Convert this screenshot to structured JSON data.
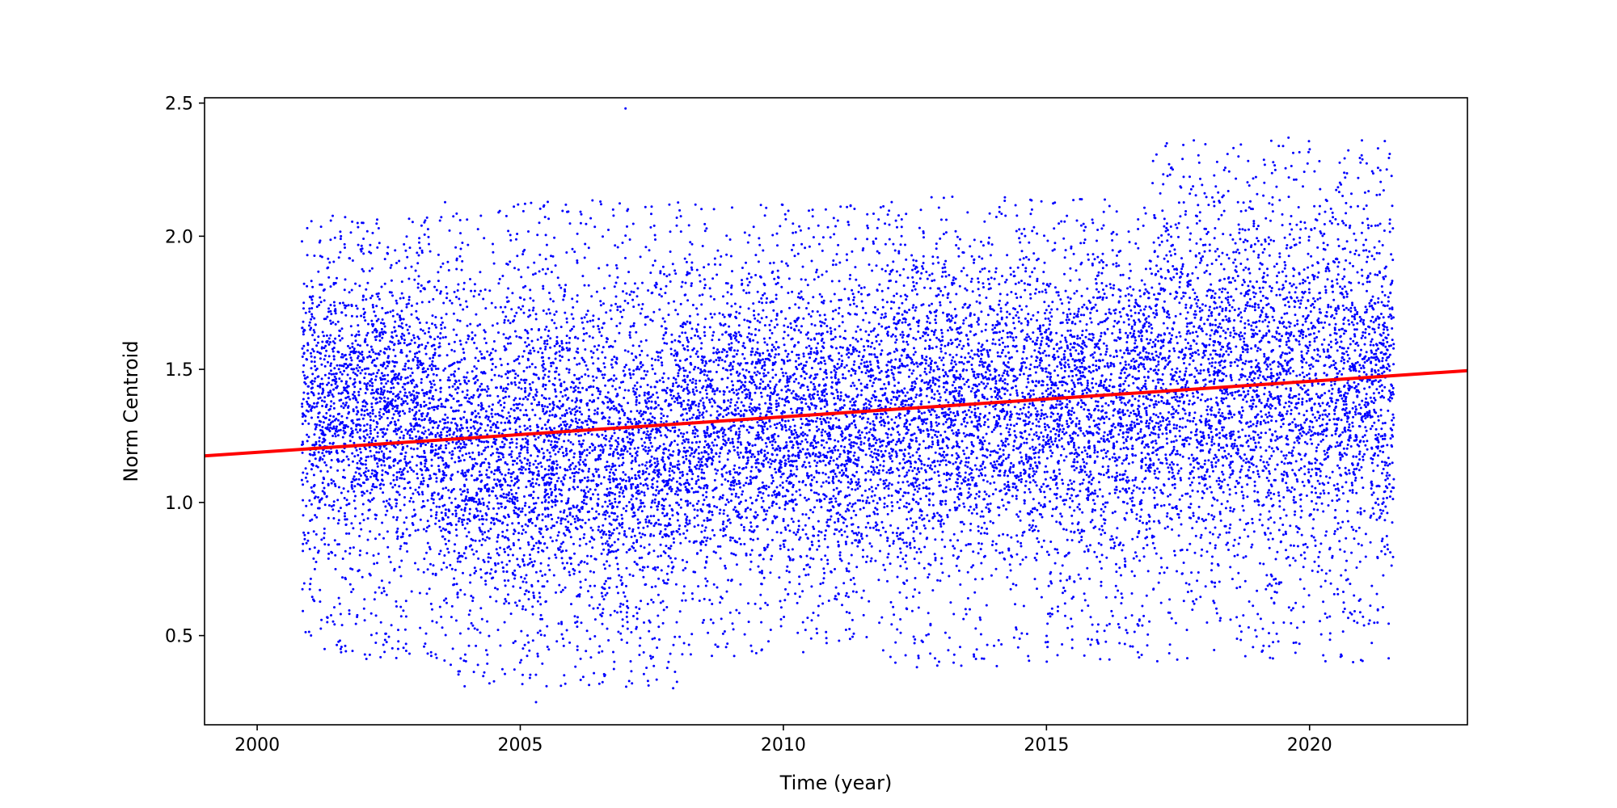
{
  "chart_data": {
    "type": "scatter",
    "title": "",
    "xlabel": "Time (year)",
    "ylabel": "Norm Centroid",
    "xlim": [
      1999.0,
      2023.0
    ],
    "ylim": [
      0.165,
      2.52
    ],
    "xticks": [
      2000,
      2005,
      2010,
      2015,
      2020
    ],
    "xtick_labels": [
      "2000",
      "2005",
      "2010",
      "2015",
      "2020"
    ],
    "yticks": [
      0.5,
      1.0,
      1.5,
      2.0,
      2.5
    ],
    "ytick_labels": [
      "0.5",
      "1.0",
      "1.5",
      "2.0",
      "2.5"
    ],
    "grid": false,
    "series": [
      {
        "kind": "scatter",
        "color": "#0000ff",
        "x_range": [
          2000.85,
          2021.6
        ],
        "approx_point_count": 16000,
        "density_bins": [
          {
            "x": [
              2000.85,
              2003.5
            ],
            "y_min": 0.4,
            "y_max": 2.08,
            "center": 1.35
          },
          {
            "x": [
              2003.5,
              2008.0
            ],
            "y_min": 0.3,
            "y_max": 2.14,
            "center": 1.2
          },
          {
            "x": [
              2008.0,
              2012.0
            ],
            "y_min": 0.42,
            "y_max": 2.12,
            "center": 1.3
          },
          {
            "x": [
              2012.0,
              2017.0
            ],
            "y_min": 0.38,
            "y_max": 2.15,
            "center": 1.35
          },
          {
            "x": [
              2017.0,
              2021.6
            ],
            "y_min": 0.4,
            "y_max": 2.36,
            "center": 1.45
          }
        ],
        "notable_points": [
          {
            "x": 2007.0,
            "y": 2.48
          },
          {
            "x": 2005.3,
            "y": 0.25
          },
          {
            "x": 2005.5,
            "y": 0.31
          },
          {
            "x": 2017.8,
            "y": 2.36
          },
          {
            "x": 2019.6,
            "y": 2.37
          },
          {
            "x": 2021.3,
            "y": 2.33
          }
        ]
      },
      {
        "kind": "line",
        "color": "#ff0000",
        "points": [
          {
            "x": 1999.0,
            "y": 1.175
          },
          {
            "x": 2023.0,
            "y": 1.495
          }
        ]
      }
    ]
  }
}
